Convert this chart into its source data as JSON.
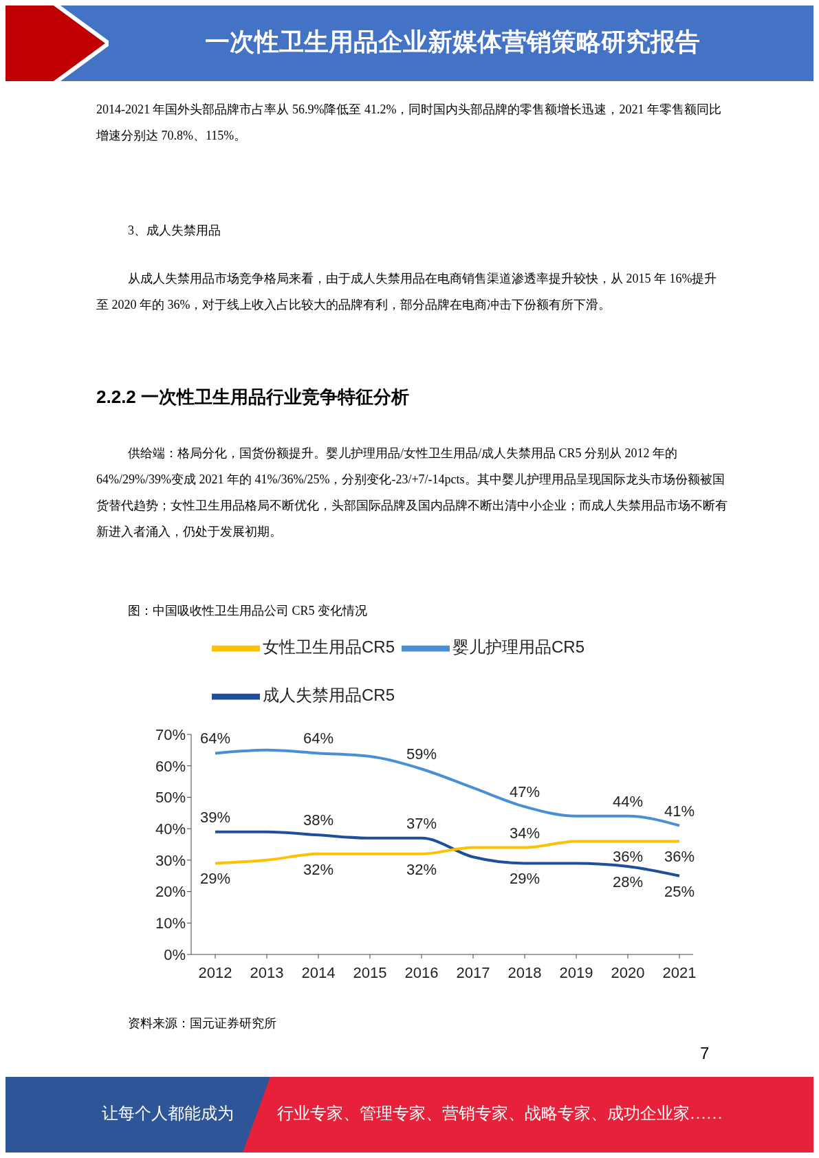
{
  "chart_data": {
    "type": "line",
    "title": "一次性卫生用品企业新媒体营销策略研究报告",
    "subtitle": "图：中国吸收性卫生用品公司 CR5 变化情况",
    "annotations": [
      "2014-2021 年国外头部品牌市占率从 56.9%降低至 41.2%，同时国内头部品牌的零售额增长迅速，2021 年零售额同比增速分别达 70.8%、115%。",
      "3、成人失禁用品",
      "从成人失禁用品市场竞争格局来看，由于成人失禁用品在电商销售渠道渗透率提升较快，从 2015 年 16%提升至 2020 年的 36%，对于线上收入占比较大的品牌有利，部分品牌在电商冲击下份额有所下滑。",
      "2.2.2 一次性卫生用品行业竞争特征分析",
      "供给端：格局分化，国货份额提升。婴儿护理用品/女性卫生用品/成人失禁用品 CR5 分别从 2012 年的 64%/29%/39%变成 2021 年的 41%/36%/25%，分别变化-23/+7/-14pcts。其中婴儿护理用品呈现国际龙头市场份额被国货替代趋势；女性卫生用品格局不断优化，头部国际品牌及国内品牌不断出清中小企业；而成人失禁用品市场不断有新进入者涌入，仍处于发展初期。",
      "资料来源：国元证券研究所",
      "7",
      "让每个人都能成为",
      "行业专家、管理专家、营销专家、战略专家、成功企业家……"
    ],
    "categories": [
      "2012",
      "2013",
      "2014",
      "2015",
      "2016",
      "2017",
      "2018",
      "2019",
      "2020",
      "2021"
    ],
    "series": [
      {
        "name": "成人失禁用品CR5",
        "color": "#1f4e9c",
        "values": [
          39,
          39,
          38,
          37,
          37,
          31,
          29,
          29,
          28,
          25
        ],
        "value_labels": [
          "39%",
          null,
          "38%",
          null,
          "37%",
          null,
          "29%",
          null,
          "28%",
          "25%"
        ]
      },
      {
        "name": "婴儿护理用品CR5",
        "color": "#4a8fd6",
        "values": [
          64,
          65,
          64,
          63,
          59,
          53,
          47,
          44,
          44,
          41
        ],
        "value_labels": [
          "64%",
          null,
          "64%",
          null,
          "59%",
          null,
          "47%",
          null,
          "44%",
          "41%"
        ]
      },
      {
        "name": "女性卫生用品CR5",
        "color": "#ffc000",
        "values": [
          29,
          30,
          32,
          32,
          32,
          34,
          34,
          36,
          36,
          36
        ],
        "value_labels": [
          "29%",
          null,
          "32%",
          null,
          "32%",
          null,
          "34%",
          null,
          "36%",
          "36%"
        ]
      }
    ],
    "ylim": [
      0,
      70
    ],
    "yticks": [
      {
        "value": 0,
        "label": "0%"
      },
      {
        "value": 10,
        "label": "10%"
      },
      {
        "value": 20,
        "label": "20%"
      },
      {
        "value": 30,
        "label": "30%"
      },
      {
        "value": 40,
        "label": "40%"
      },
      {
        "value": 50,
        "label": "50%"
      },
      {
        "value": 60,
        "label": "60%"
      },
      {
        "value": 70,
        "label": "70%"
      }
    ],
    "grid": false,
    "legend": "top",
    "marker": "none",
    "line_style": "solid"
  }
}
